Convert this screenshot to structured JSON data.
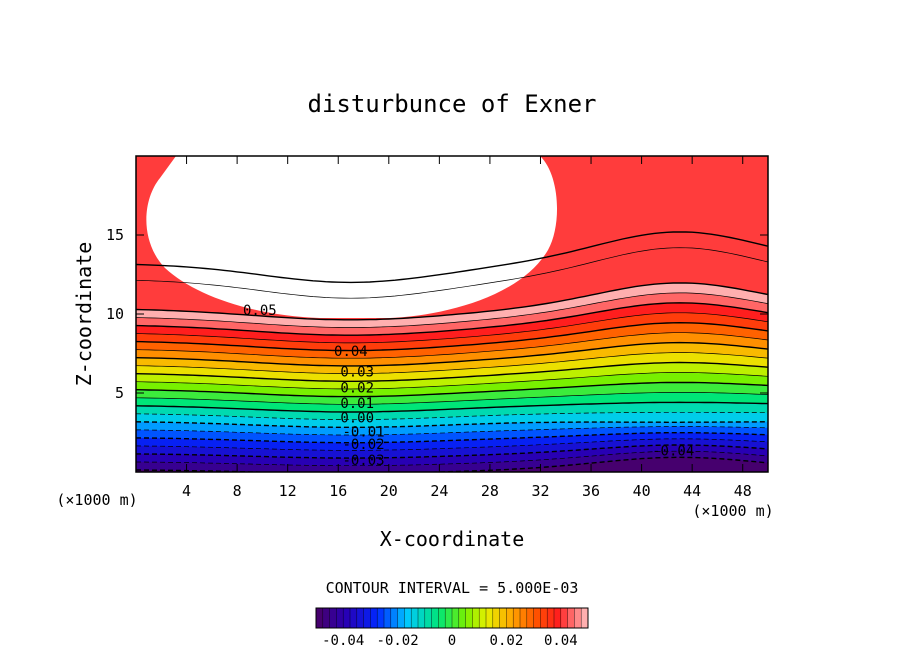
{
  "chart_data": {
    "type": "contour",
    "title": "disturbunce of Exner",
    "xlabel": "X-coordinate",
    "ylabel": "Z-coordinate",
    "x_unit": "(×1000 m)",
    "y_unit": "(×1000 m)",
    "xlim": [
      0,
      50
    ],
    "ylim": [
      0,
      20
    ],
    "x_ticks": [
      4,
      8,
      12,
      16,
      20,
      24,
      28,
      32,
      36,
      40,
      44,
      48
    ],
    "y_ticks": [
      5,
      10,
      15
    ],
    "contour_interval_text": "CONTOUR INTERVAL = 5.000E-03",
    "contour_labels": [
      {
        "text": "0.05",
        "x": 9.8,
        "z": 10.2
      },
      {
        "text": "0.04",
        "x": 17,
        "z": 7.6
      },
      {
        "text": "0.03",
        "x": 17.5,
        "z": 6.3
      },
      {
        "text": "0.02",
        "x": 17.5,
        "z": 5.3
      },
      {
        "text": "0.01",
        "x": 17.5,
        "z": 4.3
      },
      {
        "text": "0.00",
        "x": 17.5,
        "z": 3.4
      },
      {
        "text": "-0.01",
        "x": 18,
        "z": 2.5
      },
      {
        "text": "-0.02",
        "x": 18,
        "z": 1.7
      },
      {
        "text": "-0.03",
        "x": 18,
        "z": 0.7
      },
      {
        "text": "-0.04",
        "x": 42.5,
        "z": 1.3
      }
    ],
    "colorbar": {
      "range": [
        -0.05,
        0.05
      ],
      "ticks": [
        "-0.04",
        "-0.02",
        "0",
        "0.02",
        "0.04"
      ]
    }
  }
}
